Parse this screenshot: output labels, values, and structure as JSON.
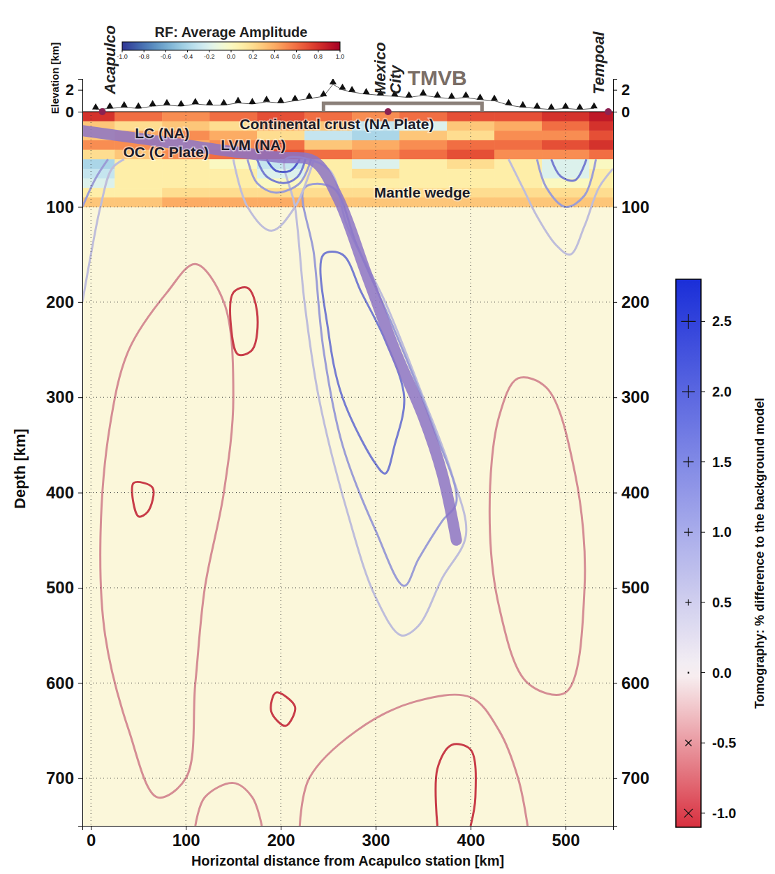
{
  "chart_data": {
    "type": "cross_section",
    "x_label": "Horizontal distance from Acapulco station [km]",
    "y_label": "Depth [km]",
    "elevation_label": "Elevation [km]",
    "xlim": [
      -9,
      550
    ],
    "xticks": [
      0,
      100,
      200,
      300,
      400,
      500
    ],
    "ylim": [
      0,
      750
    ],
    "yticks": [
      100,
      200,
      300,
      400,
      500,
      600,
      700
    ],
    "elevation_lim": [
      0,
      3
    ],
    "elevation_ticks": [
      0,
      2
    ],
    "grid": true,
    "stations": [
      {
        "name": "Acapulco",
        "x": 12
      },
      {
        "name": "Mexico City",
        "x": 313
      },
      {
        "name": "Tempoal",
        "x": 545
      }
    ],
    "region": {
      "name": "TMVB",
      "x": [
        245,
        412
      ]
    },
    "topography": {
      "x": [
        5,
        20,
        35,
        50,
        65,
        80,
        95,
        110,
        125,
        140,
        155,
        170,
        185,
        200,
        215,
        230,
        245,
        255,
        265,
        275,
        290,
        305,
        320,
        335,
        350,
        365,
        380,
        395,
        410,
        425,
        440,
        455,
        470,
        485,
        500,
        515,
        530
      ],
      "elevation": [
        0.2,
        0.3,
        0.4,
        0.3,
        0.5,
        0.6,
        0.5,
        0.7,
        0.6,
        0.6,
        0.8,
        0.7,
        0.9,
        0.8,
        1.0,
        1.2,
        1.4,
        2.5,
        2.0,
        1.8,
        1.6,
        1.5,
        1.4,
        1.3,
        1.5,
        1.3,
        1.2,
        1.3,
        1.1,
        1.0,
        0.6,
        0.4,
        0.3,
        0.2,
        0.3,
        0.2,
        0.3
      ]
    },
    "rf": {
      "title": "RF: Average Amplitude",
      "colorbar_lim": [
        -1,
        1
      ],
      "colorbar_ticks": [
        {
          "value": -1,
          "label": "-1.0"
        },
        -0.8,
        -0.6,
        -0.4,
        -0.2,
        {
          "value": 0,
          "label": "0.0"
        },
        0.2,
        0.4,
        0.6,
        0.8,
        {
          "value": 1,
          "label": "1.0"
        }
      ],
      "x_edges": [
        -9,
        25,
        75,
        125,
        175,
        225,
        275,
        325,
        375,
        425,
        475,
        525,
        550
      ],
      "depth_edges": [
        0,
        10,
        20,
        30,
        40,
        50,
        60,
        70,
        80,
        90,
        100
      ],
      "values": [
        [
          0.8,
          0.6,
          0.5,
          0.6,
          0.7,
          0.6,
          0.5,
          0.6,
          0.7,
          0.7,
          0.8,
          0.9
        ],
        [
          0.3,
          0.2,
          0.3,
          0.2,
          0.4,
          0.3,
          -0.3,
          -0.2,
          0.3,
          0.4,
          0.6,
          0.8
        ],
        [
          0.3,
          0.4,
          0.5,
          0.4,
          0.2,
          -0.3,
          -0.4,
          0.3,
          0.2,
          0.5,
          0.5,
          0.7
        ],
        [
          0.5,
          0.5,
          0.4,
          0.5,
          0.6,
          0.3,
          0.4,
          0.5,
          0.6,
          0.6,
          0.7,
          0.8
        ],
        [
          0.2,
          0.3,
          0.5,
          0.6,
          0.7,
          0.6,
          0.5,
          0.6,
          0.7,
          0.5,
          0.5,
          0.6
        ],
        [
          -0.4,
          0.1,
          0.1,
          0.0,
          -0.3,
          0.1,
          -0.2,
          0.1,
          0.2,
          0.1,
          -0.2,
          0.0
        ],
        [
          -0.3,
          0.1,
          0.1,
          0.1,
          -0.2,
          0.1,
          0.2,
          0.1,
          0.1,
          0.1,
          -0.2,
          0.1
        ],
        [
          -0.2,
          0.1,
          0.1,
          0.1,
          0.0,
          0.1,
          0.1,
          0.1,
          0.1,
          0.1,
          0.0,
          0.1
        ],
        [
          0.1,
          0.1,
          0.2,
          0.2,
          0.2,
          0.2,
          0.2,
          0.2,
          0.2,
          0.2,
          0.2,
          0.2
        ],
        [
          0.3,
          0.3,
          0.4,
          0.4,
          0.4,
          0.3,
          0.3,
          0.3,
          0.3,
          0.3,
          0.3,
          0.3
        ]
      ]
    },
    "tomography": {
      "title": "Tomography: % difference to the background model",
      "colorbar_lim": [
        -1.1,
        2.8
      ],
      "colorbar_ticks": [
        {
          "value": -1,
          "label": "-1.0"
        },
        {
          "value": -0.5,
          "label": "-0.5"
        },
        {
          "value": 0,
          "label": "0.0"
        },
        0.5,
        {
          "value": 1,
          "label": "1.0"
        },
        1.5,
        {
          "value": 2,
          "label": "2.0"
        },
        2.5
      ],
      "contours": [
        {
          "level": 0.5,
          "x": [
            205,
            215,
            225,
            240,
            270,
            300,
            327,
            345,
            370,
            395,
            380,
            350,
            310,
            270,
            250,
            205
          ],
          "depth": [
            50,
            100,
            200,
            300,
            420,
            510,
            550,
            540,
            490,
            445,
            380,
            300,
            200,
            120,
            60,
            50
          ]
        },
        {
          "level": 1.0,
          "x": [
            225,
            235,
            245,
            265,
            300,
            330,
            345,
            370,
            385,
            360,
            320,
            280,
            255,
            225
          ],
          "depth": [
            80,
            150,
            250,
            350,
            440,
            498,
            470,
            430,
            410,
            330,
            230,
            140,
            80,
            80
          ]
        },
        {
          "level": 1.5,
          "x": [
            245,
            250,
            265,
            300,
            310,
            320,
            330,
            310,
            285,
            265,
            245
          ],
          "depth": [
            150,
            230,
            300,
            370,
            380,
            350,
            300,
            240,
            190,
            150,
            150
          ]
        },
        {
          "level": 0.5,
          "x": [
            150,
            165,
            190,
            215,
            235
          ],
          "depth": [
            50,
            100,
            125,
            100,
            50
          ]
        },
        {
          "level": 1.0,
          "x": [
            165,
            175,
            195,
            220,
            232
          ],
          "depth": [
            50,
            75,
            85,
            75,
            50
          ]
        },
        {
          "level": 1.5,
          "x": [
            175,
            185,
            203,
            218,
            226
          ],
          "depth": [
            50,
            68,
            75,
            68,
            50
          ]
        },
        {
          "level": 2.0,
          "x": [
            185,
            195,
            210,
            220
          ],
          "depth": [
            50,
            62,
            62,
            50
          ]
        },
        {
          "level": 0.5,
          "x": [
            -9,
            0,
            10,
            22,
            35
          ],
          "depth": [
            200,
            150,
            100,
            60,
            50
          ]
        },
        {
          "level": 1.0,
          "x": [
            -9,
            5,
            18
          ],
          "depth": [
            100,
            70,
            50
          ]
        },
        {
          "level": 0.5,
          "x": [
            440,
            455,
            470,
            490,
            505,
            520,
            535,
            550
          ],
          "depth": [
            50,
            80,
            110,
            140,
            150,
            120,
            80,
            60
          ]
        },
        {
          "level": 1.0,
          "x": [
            470,
            480,
            500,
            520,
            532
          ],
          "depth": [
            50,
            80,
            100,
            88,
            50
          ]
        },
        {
          "level": 1.5,
          "x": [
            485,
            495,
            510,
            522
          ],
          "depth": [
            50,
            68,
            72,
            50
          ]
        },
        {
          "level": -0.5,
          "x": [
            40,
            20,
            10,
            15,
            40,
            70,
            100,
            110,
            120,
            140,
            150,
            140,
            110,
            80,
            40
          ],
          "depth": [
            250,
            330,
            450,
            550,
            650,
            720,
            700,
            600,
            500,
            400,
            300,
            200,
            160,
            190,
            250
          ]
        },
        {
          "level": -1.0,
          "x": [
            150,
            148,
            155,
            170,
            175,
            165,
            150
          ],
          "depth": [
            190,
            230,
            255,
            250,
            210,
            185,
            190
          ]
        },
        {
          "level": -1.0,
          "x": [
            45,
            50,
            60,
            65,
            45
          ],
          "depth": [
            390,
            425,
            420,
            395,
            390
          ]
        },
        {
          "level": -0.5,
          "x": [
            430,
            420,
            430,
            460,
            500,
            520,
            510,
            480,
            450,
            430
          ],
          "depth": [
            320,
            420,
            520,
            600,
            610,
            500,
            380,
            290,
            280,
            320
          ]
        },
        {
          "level": -0.5,
          "x": [
            220,
            230,
            280,
            340,
            400,
            430,
            450,
            460
          ],
          "depth": [
            750,
            700,
            650,
            620,
            615,
            650,
            700,
            750
          ]
        },
        {
          "level": -1.0,
          "x": [
            365,
            365,
            380,
            400,
            405,
            400
          ],
          "depth": [
            750,
            690,
            665,
            670,
            720,
            750
          ]
        },
        {
          "level": -1.0,
          "x": [
            195,
            190,
            205,
            215,
            195
          ],
          "depth": [
            610,
            630,
            645,
            625,
            610
          ]
        },
        {
          "level": -0.5,
          "x": [
            110,
            120,
            150,
            170,
            180
          ],
          "depth": [
            750,
            720,
            705,
            720,
            750
          ]
        }
      ]
    },
    "slab": {
      "x": [
        -9,
        50,
        100,
        150,
        200,
        235,
        260,
        290,
        320,
        350,
        370,
        385
      ],
      "depth": [
        20,
        28,
        35,
        42,
        48,
        52,
        90,
        170,
        250,
        320,
        380,
        450
      ]
    },
    "annotations": [
      {
        "text": "Continental crust (NA Plate)",
        "x": 259,
        "depth": 18
      },
      {
        "text": "LC (NA)",
        "x": 75,
        "depth": 28
      },
      {
        "text": "OC (C Plate)",
        "x": 79,
        "depth": 48
      },
      {
        "text": "LVM (NA)",
        "x": 171,
        "depth": 40
      },
      {
        "text": "Mantle wedge",
        "x": 349,
        "depth": 90
      }
    ]
  }
}
